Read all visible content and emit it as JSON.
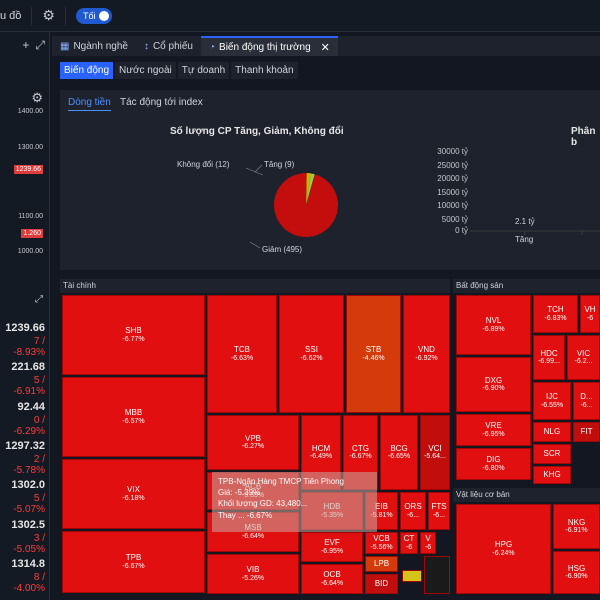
{
  "topbar": {
    "title": "u đồ",
    "toggle_label": "Tối"
  },
  "left": {
    "yticks": [
      "1400.00",
      "1300.00",
      "1100.00",
      "1000.00"
    ],
    "tags": [
      "1239.66",
      "1.260"
    ],
    "indices": [
      {
        "value": "1239.66",
        "change": "7 / -8.93%"
      },
      {
        "value": "221.68",
        "change": "5 / -6.91%"
      },
      {
        "value": "92.44",
        "change": "0 / -6.29%"
      },
      {
        "value": "1297.32",
        "change": "2 / -5.78%"
      },
      {
        "value": "1302.0",
        "change": "5 / -5.07%"
      },
      {
        "value": "1302.5",
        "change": "3 / -5.05%"
      },
      {
        "value": "1314.8",
        "change": "8 / -4.00%"
      }
    ]
  },
  "tabs": [
    {
      "label": "Ngành nghề"
    },
    {
      "label": "Cổ phiếu"
    },
    {
      "label": "Biến động thị trường"
    }
  ],
  "subtabs": [
    "Biến động",
    "Nước ngoài",
    "Tự doanh",
    "Thanh khoản"
  ],
  "panel": {
    "tabs": [
      "Dòng tiền",
      "Tác động tới index"
    ],
    "pie_title": "Số lượng CP Tăng, Giảm, Không đổi",
    "pie_labels": {
      "unchanged": "Không đổi (12)",
      "up": "Tăng (9)",
      "down": "Giảm (495)"
    },
    "bar_title": "Phân b",
    "bar_ticks": [
      "30000 tỷ",
      "25000 tỷ",
      "20000 tỷ",
      "15000 tỷ",
      "10000 tỷ",
      "5000 tỷ",
      "0 tỷ"
    ],
    "bar_value": "2.1 tỷ",
    "bar_cat": "Tăng"
  },
  "chart_data": {
    "type": "pie",
    "title": "Số lượng CP Tăng, Giảm, Không đổi",
    "categories": [
      "Không đổi",
      "Tăng",
      "Giảm"
    ],
    "values": [
      12,
      9,
      495
    ]
  },
  "treemap": {
    "sections": [
      "Tài chính",
      "Bất động sản",
      "Vật liệu cơ bản"
    ],
    "cells": [
      {
        "n": "SHB",
        "p": "-6.77%"
      },
      {
        "n": "MBB",
        "p": "-6.57%"
      },
      {
        "n": "VIX",
        "p": "-6.18%"
      },
      {
        "n": "TPB",
        "p": "-6.67%"
      },
      {
        "n": "TCB",
        "p": "-6.63%"
      },
      {
        "n": "SSI",
        "p": "-6.62%"
      },
      {
        "n": "STB",
        "p": "-4.46%"
      },
      {
        "n": "VND",
        "p": "-6.92%"
      },
      {
        "n": "VPB",
        "p": "-6.27%"
      },
      {
        "n": "HCM",
        "p": "-6.49%"
      },
      {
        "n": "CTG",
        "p": "-6.67%"
      },
      {
        "n": "BCG",
        "p": "-6.65%"
      },
      {
        "n": "VCI",
        "p": "-5.64..."
      },
      {
        "n": "ACB",
        "p": "-5.39%"
      },
      {
        "n": "HDB",
        "p": "-5.35%"
      },
      {
        "n": "EIB",
        "p": "-5.81%"
      },
      {
        "n": "ORS",
        "p": "-6..."
      },
      {
        "n": "FTS",
        "p": "-6..."
      },
      {
        "n": "MSB",
        "p": "-6.64%"
      },
      {
        "n": "EVF",
        "p": "-6.95%"
      },
      {
        "n": "VCB",
        "p": "-5.56%"
      },
      {
        "n": "CT",
        "p": "-6"
      },
      {
        "n": "V",
        "p": "-6"
      },
      {
        "n": "VIB",
        "p": "-5.26%"
      },
      {
        "n": "OCB",
        "p": "-6.64%"
      },
      {
        "n": "LPB",
        "p": ""
      },
      {
        "n": "BID",
        "p": ""
      },
      {
        "n": "NVL",
        "p": "-6.89%"
      },
      {
        "n": "TCH",
        "p": "-6.83%"
      },
      {
        "n": "VH",
        "p": "-6"
      },
      {
        "n": "DXG",
        "p": "-6.90%"
      },
      {
        "n": "HDC",
        "p": "-6.99..."
      },
      {
        "n": "VIC",
        "p": "-6.2..."
      },
      {
        "n": "IJC",
        "p": "-6.55%"
      },
      {
        "n": "D...",
        "p": "-6..."
      },
      {
        "n": "VRE",
        "p": "-6.95%"
      },
      {
        "n": "NLG",
        "p": ""
      },
      {
        "n": "FIT",
        "p": ""
      },
      {
        "n": "SCR",
        "p": ""
      },
      {
        "n": "DIG",
        "p": "-6.80%"
      },
      {
        "n": "KHG",
        "p": ""
      },
      {
        "n": "HPG",
        "p": "-6.24%"
      },
      {
        "n": "NKG",
        "p": "-6.91%"
      },
      {
        "n": "HSG",
        "p": "-6.90%"
      }
    ],
    "tooltip": {
      "l1": "TPB-Ngân Hàng TMCP Tiên Phong",
      "l2": "Giá: -5.39%",
      "l3": "Khối lượng GD: 43,480...",
      "l4": "Thay ... -6.67%"
    }
  }
}
